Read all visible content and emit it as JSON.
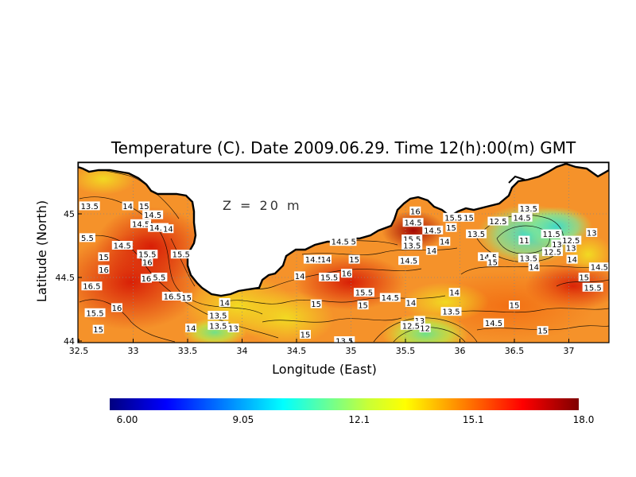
{
  "chart_data": {
    "type": "heatmap",
    "title": "Temperature (C). Date 2009.06.29. Time 12(h):00(m) GMT",
    "annotation": "Z = 20 m",
    "xlabel": "Longitude (East)",
    "ylabel": "Latitude (North)",
    "xlim": [
      32.5,
      37.3
    ],
    "ylim": [
      44.0,
      45.3
    ],
    "x_ticks": [
      "32.5",
      "33",
      "33.5",
      "34",
      "34.5",
      "35",
      "35.5",
      "36",
      "36.5",
      "37"
    ],
    "y_ticks": [
      "44",
      "44.5",
      "45"
    ],
    "grid": true,
    "colorbar": {
      "min": 6.0,
      "max": 18.0,
      "tick_labels": [
        "6.00",
        "9.05",
        "12.1",
        "15.1",
        "18.0"
      ]
    },
    "contour_labels": [
      {
        "text": "13.5",
        "lon": 32.6,
        "lat": 45.06
      },
      {
        "text": "14",
        "lon": 32.95,
        "lat": 45.06
      },
      {
        "text": "15",
        "lon": 33.1,
        "lat": 45.06
      },
      {
        "text": "14.5",
        "lon": 33.18,
        "lat": 44.99
      },
      {
        "text": "14.5",
        "lon": 33.07,
        "lat": 44.92
      },
      {
        "text": "14.5",
        "lon": 33.23,
        "lat": 44.89
      },
      {
        "text": "14",
        "lon": 33.32,
        "lat": 44.88
      },
      {
        "text": "5.5",
        "lon": 32.58,
        "lat": 44.81
      },
      {
        "text": "14.5",
        "lon": 32.9,
        "lat": 44.75
      },
      {
        "text": "15",
        "lon": 32.73,
        "lat": 44.66
      },
      {
        "text": "15.5",
        "lon": 33.13,
        "lat": 44.68
      },
      {
        "text": "15.5",
        "lon": 33.44,
        "lat": 44.68
      },
      {
        "text": "16",
        "lon": 32.73,
        "lat": 44.56
      },
      {
        "text": "16",
        "lon": 33.13,
        "lat": 44.62
      },
      {
        "text": "16",
        "lon": 33.12,
        "lat": 44.49
      },
      {
        "text": "5.5",
        "lon": 33.24,
        "lat": 44.5
      },
      {
        "text": "16.5",
        "lon": 32.62,
        "lat": 44.43
      },
      {
        "text": "16",
        "lon": 32.85,
        "lat": 44.26
      },
      {
        "text": "15.5",
        "lon": 32.65,
        "lat": 44.22
      },
      {
        "text": "16.5",
        "lon": 33.36,
        "lat": 44.35
      },
      {
        "text": "15",
        "lon": 33.49,
        "lat": 44.34
      },
      {
        "text": "14",
        "lon": 33.84,
        "lat": 44.3
      },
      {
        "text": "15",
        "lon": 32.68,
        "lat": 44.09
      },
      {
        "text": "14",
        "lon": 33.53,
        "lat": 44.1
      },
      {
        "text": "13.5",
        "lon": 33.78,
        "lat": 44.2
      },
      {
        "text": "13.5",
        "lon": 33.78,
        "lat": 44.12
      },
      {
        "text": "13",
        "lon": 33.92,
        "lat": 44.1
      },
      {
        "text": "15",
        "lon": 35.0,
        "lat": 44.78
      },
      {
        "text": "14.5",
        "lon": 34.9,
        "lat": 44.78
      },
      {
        "text": "14.5",
        "lon": 34.66,
        "lat": 44.64
      },
      {
        "text": "14",
        "lon": 34.77,
        "lat": 44.64
      },
      {
        "text": "15",
        "lon": 35.03,
        "lat": 44.64
      },
      {
        "text": "14",
        "lon": 34.53,
        "lat": 44.51
      },
      {
        "text": "15.5",
        "lon": 34.8,
        "lat": 44.5
      },
      {
        "text": "16",
        "lon": 34.96,
        "lat": 44.53
      },
      {
        "text": "15.5",
        "lon": 35.12,
        "lat": 44.38
      },
      {
        "text": "15",
        "lon": 34.68,
        "lat": 44.29
      },
      {
        "text": "15",
        "lon": 35.11,
        "lat": 44.28
      },
      {
        "text": "14.5",
        "lon": 35.36,
        "lat": 44.34
      },
      {
        "text": "14",
        "lon": 35.55,
        "lat": 44.3
      },
      {
        "text": "14",
        "lon": 35.95,
        "lat": 44.38
      },
      {
        "text": "13.5",
        "lon": 35.92,
        "lat": 44.23
      },
      {
        "text": "13",
        "lon": 35.63,
        "lat": 44.16
      },
      {
        "text": "12.5",
        "lon": 35.55,
        "lat": 44.12
      },
      {
        "text": "12",
        "lon": 35.68,
        "lat": 44.1
      },
      {
        "text": "14.5",
        "lon": 36.31,
        "lat": 44.14
      },
      {
        "text": "15",
        "lon": 36.76,
        "lat": 44.08
      },
      {
        "text": "15",
        "lon": 36.5,
        "lat": 44.28
      },
      {
        "text": "15",
        "lon": 34.58,
        "lat": 44.05
      },
      {
        "text": "13.5",
        "lon": 34.94,
        "lat": 44.0
      },
      {
        "text": "16",
        "lon": 35.59,
        "lat": 45.02
      },
      {
        "text": "15.5",
        "lon": 35.94,
        "lat": 44.97
      },
      {
        "text": "15",
        "lon": 36.08,
        "lat": 44.97
      },
      {
        "text": "14.5",
        "lon": 35.57,
        "lat": 44.93
      },
      {
        "text": "14.5",
        "lon": 35.75,
        "lat": 44.87
      },
      {
        "text": "15",
        "lon": 35.92,
        "lat": 44.89
      },
      {
        "text": "15.5",
        "lon": 35.56,
        "lat": 44.8
      },
      {
        "text": "13.5",
        "lon": 35.56,
        "lat": 44.75
      },
      {
        "text": "14",
        "lon": 35.86,
        "lat": 44.78
      },
      {
        "text": "14",
        "lon": 35.74,
        "lat": 44.71
      },
      {
        "text": "14.5",
        "lon": 35.53,
        "lat": 44.63
      },
      {
        "text": "13.5",
        "lon": 36.15,
        "lat": 44.84
      },
      {
        "text": "12.5",
        "lon": 36.35,
        "lat": 44.94
      },
      {
        "text": "14.5",
        "lon": 36.57,
        "lat": 44.97
      },
      {
        "text": "13.5",
        "lon": 36.63,
        "lat": 45.04
      },
      {
        "text": "11",
        "lon": 36.59,
        "lat": 44.79
      },
      {
        "text": "11.5",
        "lon": 36.84,
        "lat": 44.84
      },
      {
        "text": "12.5",
        "lon": 37.02,
        "lat": 44.79
      },
      {
        "text": "13",
        "lon": 37.21,
        "lat": 44.85
      },
      {
        "text": "13",
        "lon": 36.89,
        "lat": 44.76
      },
      {
        "text": "13",
        "lon": 37.02,
        "lat": 44.73
      },
      {
        "text": "12.5",
        "lon": 36.85,
        "lat": 44.7
      },
      {
        "text": "13.5",
        "lon": 36.63,
        "lat": 44.65
      },
      {
        "text": "14.5",
        "lon": 36.26,
        "lat": 44.66
      },
      {
        "text": "15",
        "lon": 36.3,
        "lat": 44.62
      },
      {
        "text": "14",
        "lon": 36.68,
        "lat": 44.58
      },
      {
        "text": "14",
        "lon": 37.03,
        "lat": 44.64
      },
      {
        "text": "15",
        "lon": 37.14,
        "lat": 44.5
      },
      {
        "text": "14.5",
        "lon": 37.28,
        "lat": 44.58
      },
      {
        "text": "15.5",
        "lon": 37.22,
        "lat": 44.42
      }
    ]
  }
}
